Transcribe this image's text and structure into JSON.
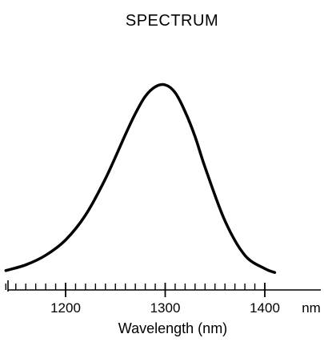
{
  "chart_data": {
    "type": "line",
    "title": "SPECTRUM",
    "xlabel": "Wavelength (nm)",
    "ylabel": "",
    "x_unit_label": "nm",
    "xlim": [
      1140,
      1400
    ],
    "major_ticks": [
      1200,
      1300,
      1400
    ],
    "minor_tick_step": 10,
    "ylim": [
      0,
      1
    ],
    "y_axis_shown": false,
    "grid": false,
    "series": [
      {
        "x": [
          1140,
          1160,
          1180,
          1200,
          1220,
          1240,
          1260,
          1270,
          1280,
          1290,
          1300,
          1310,
          1320,
          1330,
          1340,
          1360,
          1380,
          1400,
          1410
        ],
        "y": [
          0.03,
          0.06,
          0.11,
          0.19,
          0.32,
          0.51,
          0.74,
          0.85,
          0.94,
          0.99,
          1.0,
          0.96,
          0.86,
          0.73,
          0.57,
          0.29,
          0.11,
          0.04,
          0.02
        ]
      }
    ]
  }
}
